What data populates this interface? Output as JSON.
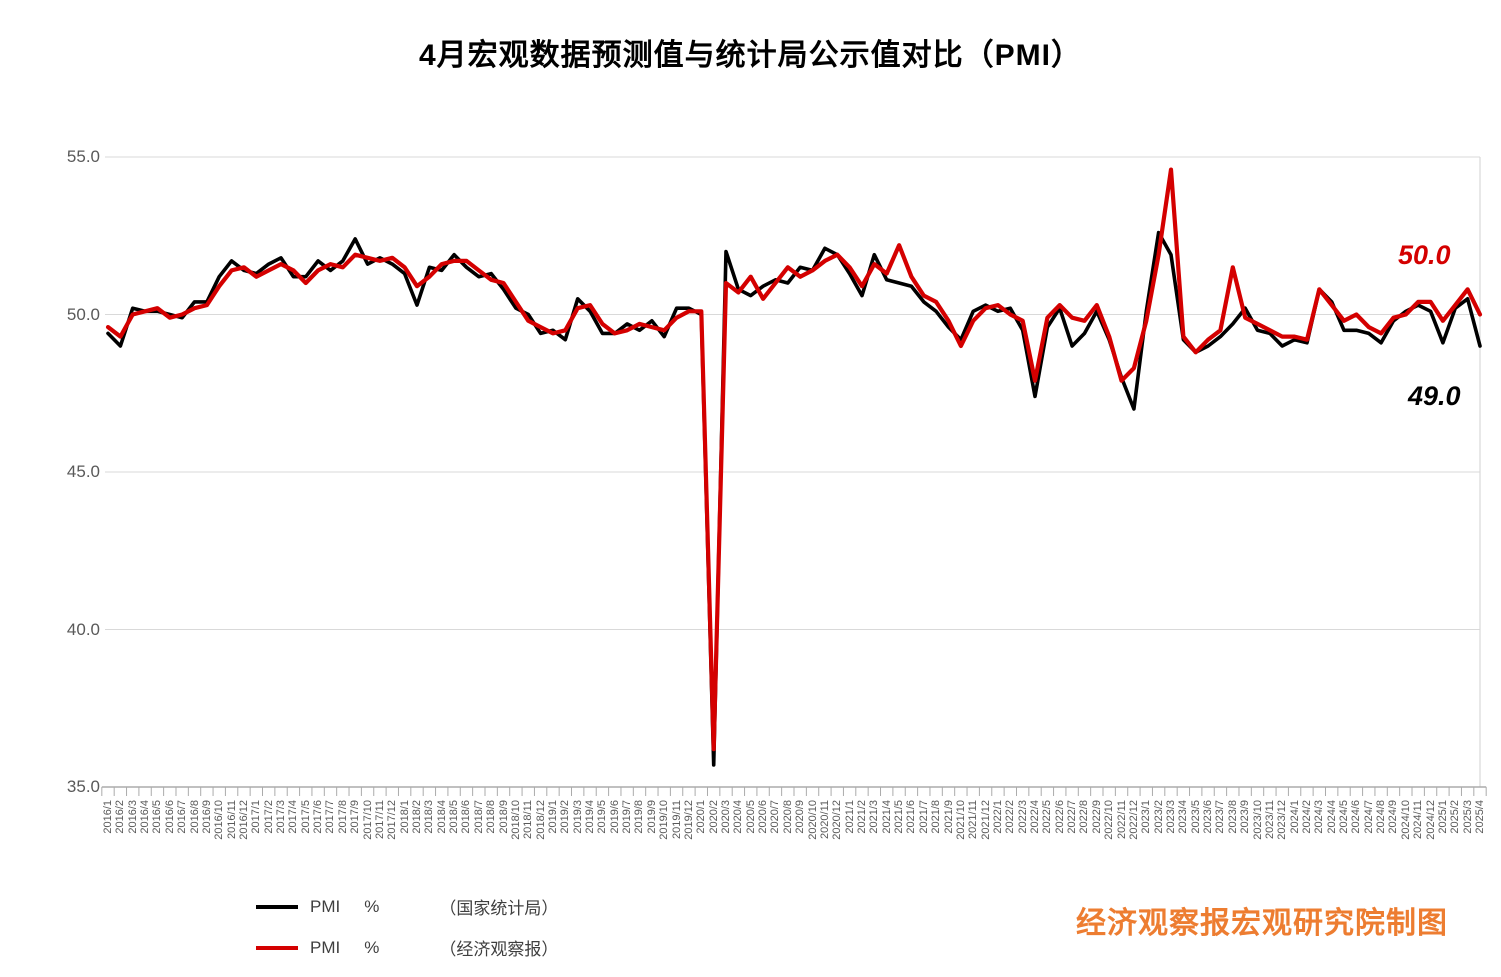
{
  "title": "4月宏观数据预测值与统计局公示值对比（PMI）",
  "credit": "经济观察报宏观研究院制图",
  "annotations": {
    "forecast": {
      "text": "50.0",
      "color": "#d40000"
    },
    "official": {
      "text": "49.0",
      "color": "#000000"
    }
  },
  "legend": {
    "entries": [
      {
        "name": "PMI",
        "unit": "%",
        "source": "（国家统计局）",
        "color": "#000000"
      },
      {
        "name": "PMI",
        "unit": "%",
        "source": "（经济观察报）",
        "color": "#d40000"
      }
    ]
  },
  "axis": {
    "yticks_labels": [
      "55.0",
      "50.0",
      "45.0",
      "40.0",
      "35.0"
    ],
    "yticks_values": [
      55,
      50,
      45,
      40,
      35
    ]
  },
  "chart_data": {
    "type": "line",
    "title": "4月宏观数据预测值与统计局公示值对比（PMI）",
    "xlabel": "",
    "ylabel": "PMI %",
    "ylim": [
      35.0,
      55.0
    ],
    "grid": true,
    "legend_position": "bottom-left",
    "categories": [
      "2016/1",
      "2016/2",
      "2016/3",
      "2016/4",
      "2016/5",
      "2016/6",
      "2016/7",
      "2016/8",
      "2016/9",
      "2016/10",
      "2016/11",
      "2016/12",
      "2017/1",
      "2017/2",
      "2017/3",
      "2017/4",
      "2017/5",
      "2017/6",
      "2017/7",
      "2017/8",
      "2017/9",
      "2017/10",
      "2017/11",
      "2017/12",
      "2018/1",
      "2018/2",
      "2018/3",
      "2018/4",
      "2018/5",
      "2018/6",
      "2018/7",
      "2018/8",
      "2018/9",
      "2018/10",
      "2018/11",
      "2018/12",
      "2019/1",
      "2019/2",
      "2019/3",
      "2019/4",
      "2019/5",
      "2019/6",
      "2019/7",
      "2019/8",
      "2019/9",
      "2019/10",
      "2019/11",
      "2019/12",
      "2020/1",
      "2020/2",
      "2020/3",
      "2020/4",
      "2020/5",
      "2020/6",
      "2020/7",
      "2020/8",
      "2020/9",
      "2020/10",
      "2020/11",
      "2020/12",
      "2021/1",
      "2021/2",
      "2021/3",
      "2021/4",
      "2021/5",
      "2021/6",
      "2021/7",
      "2021/8",
      "2021/9",
      "2021/10",
      "2021/11",
      "2021/12",
      "2022/1",
      "2022/2",
      "2022/3",
      "2022/4",
      "2022/5",
      "2022/6",
      "2022/7",
      "2022/8",
      "2022/9",
      "2022/10",
      "2022/11",
      "2022/12",
      "2023/1",
      "2023/2",
      "2023/3",
      "2023/4",
      "2023/5",
      "2023/6",
      "2023/7",
      "2023/8",
      "2023/9",
      "2023/10",
      "2023/11",
      "2023/12",
      "2024/1",
      "2024/2",
      "2024/3",
      "2024/4",
      "2024/5",
      "2024/6",
      "2024/7",
      "2024/8",
      "2024/9",
      "2024/10",
      "2024/11",
      "2024/12",
      "2025/1",
      "2025/2",
      "2025/3",
      "2025/4"
    ],
    "series": [
      {
        "name": "PMI %（国家统计局）",
        "color": "#000000",
        "width": 3.6,
        "values": [
          49.4,
          49.0,
          50.2,
          50.1,
          50.1,
          50.0,
          49.9,
          50.4,
          50.4,
          51.2,
          51.7,
          51.4,
          51.3,
          51.6,
          51.8,
          51.2,
          51.2,
          51.7,
          51.4,
          51.7,
          52.4,
          51.6,
          51.8,
          51.6,
          51.3,
          50.3,
          51.5,
          51.4,
          51.9,
          51.5,
          51.2,
          51.3,
          50.8,
          50.2,
          50.0,
          49.4,
          49.5,
          49.2,
          50.5,
          50.1,
          49.4,
          49.4,
          49.7,
          49.5,
          49.8,
          49.3,
          50.2,
          50.2,
          50.0,
          35.7,
          52.0,
          50.8,
          50.6,
          50.9,
          51.1,
          51.0,
          51.5,
          51.4,
          52.1,
          51.9,
          51.3,
          50.6,
          51.9,
          51.1,
          51.0,
          50.9,
          50.4,
          50.1,
          49.6,
          49.2,
          50.1,
          50.3,
          50.1,
          50.2,
          49.5,
          47.4,
          49.6,
          50.2,
          49.0,
          49.4,
          50.1,
          49.2,
          48.0,
          47.0,
          50.1,
          52.6,
          51.9,
          49.2,
          48.8,
          49.0,
          49.3,
          49.7,
          50.2,
          49.5,
          49.4,
          49.0,
          49.2,
          49.1,
          50.8,
          50.4,
          49.5,
          49.5,
          49.4,
          49.1,
          49.8,
          50.1,
          50.3,
          50.1,
          49.1,
          50.2,
          50.5,
          49.0
        ]
      },
      {
        "name": "PMI %（经济观察报）",
        "color": "#d40000",
        "width": 4.2,
        "values": [
          49.6,
          49.3,
          50.0,
          50.1,
          50.2,
          49.9,
          50.0,
          50.2,
          50.3,
          50.9,
          51.4,
          51.5,
          51.2,
          51.4,
          51.6,
          51.4,
          51.0,
          51.4,
          51.6,
          51.5,
          51.9,
          51.8,
          51.7,
          51.8,
          51.5,
          50.9,
          51.2,
          51.6,
          51.7,
          51.7,
          51.4,
          51.1,
          51.0,
          50.4,
          49.8,
          49.6,
          49.4,
          49.5,
          50.2,
          50.3,
          49.7,
          49.4,
          49.5,
          49.7,
          49.6,
          49.5,
          49.9,
          50.1,
          50.1,
          36.2,
          51.0,
          50.7,
          51.2,
          50.5,
          51.0,
          51.5,
          51.2,
          51.4,
          51.7,
          51.9,
          51.5,
          50.9,
          51.6,
          51.3,
          52.2,
          51.2,
          50.6,
          50.4,
          49.8,
          49.0,
          49.8,
          50.2,
          50.3,
          50.0,
          49.8,
          47.9,
          49.9,
          50.3,
          49.9,
          49.8,
          50.3,
          49.3,
          47.9,
          48.3,
          49.8,
          51.9,
          54.6,
          49.3,
          48.8,
          49.2,
          49.5,
          51.5,
          49.9,
          49.7,
          49.5,
          49.3,
          49.3,
          49.2,
          50.8,
          50.3,
          49.8,
          50.0,
          49.6,
          49.4,
          49.9,
          50.0,
          50.4,
          50.4,
          49.8,
          50.3,
          50.8,
          50.0
        ]
      }
    ],
    "last_value_labels": {
      "forecast": "50.0",
      "official": "49.0"
    }
  }
}
